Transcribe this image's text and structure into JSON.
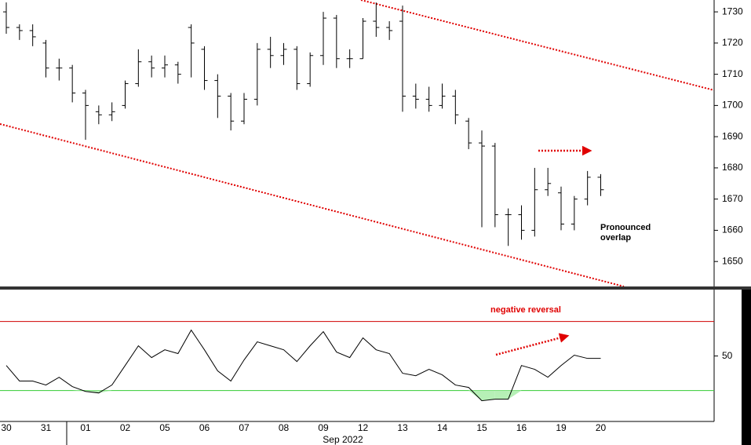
{
  "chart_data": [
    {
      "type": "ohlc",
      "categories": [
        "30",
        null,
        null,
        "31",
        null,
        null,
        "01",
        null,
        null,
        "02",
        null,
        null,
        "05",
        null,
        null,
        "06",
        null,
        null,
        "07",
        null,
        null,
        "08",
        null,
        null,
        "09",
        null,
        null,
        "12",
        null,
        null,
        "13",
        null,
        null,
        "14",
        null,
        null,
        "15",
        null,
        null,
        "16",
        null,
        null,
        "19",
        null,
        null,
        "20"
      ],
      "open": [
        1730,
        1725,
        1724,
        1720,
        1712,
        1712,
        1704,
        1698,
        1697,
        1700,
        1707,
        1714,
        1712,
        1713,
        1725,
        1718,
        1708,
        1703,
        1695,
        1702,
        1718,
        1716,
        1718,
        1707,
        1716,
        1728,
        1715,
        1715,
        1727,
        1725,
        1727,
        1703,
        1702,
        1700,
        1703,
        1695,
        1688,
        1687,
        1665,
        1665,
        1660,
        1673,
        1672,
        1662,
        1670,
        1677
      ],
      "high": [
        1733,
        1726,
        1726,
        1721,
        1715,
        1713,
        1705,
        1700,
        1701,
        1708,
        1718,
        1716,
        1716,
        1714,
        1726,
        1719,
        1710,
        1704,
        1704,
        1720,
        1722,
        1720,
        1719,
        1717,
        1730,
        1729,
        1718,
        1728,
        1733,
        1727,
        1732,
        1707,
        1706,
        1707,
        1705,
        1696,
        1692,
        1688,
        1667,
        1668,
        1680,
        1680,
        1674,
        1671,
        1679,
        1678
      ],
      "low": [
        1723,
        1721,
        1719,
        1709,
        1708,
        1701,
        1689,
        1694,
        1695,
        1699,
        1706,
        1709,
        1709,
        1707,
        1709,
        1705,
        1696,
        1692,
        1694,
        1700,
        1712,
        1713,
        1705,
        1706,
        1713,
        1712,
        1712,
        1715,
        1722,
        1721,
        1698,
        1699,
        1698,
        1699,
        1694,
        1686,
        1661,
        1661,
        1655,
        1657,
        1658,
        1671,
        1660,
        1660,
        1668,
        1671
      ],
      "close": [
        1725,
        1724,
        1722,
        1712,
        1712,
        1704,
        1700,
        1697,
        1698,
        1707,
        1714,
        1712,
        1713,
        1710,
        1720,
        1708,
        1703,
        1695,
        1702,
        1718,
        1716,
        1718,
        1707,
        1716,
        1728,
        1715,
        1715,
        1727,
        1725,
        1724,
        1703,
        1702,
        1700,
        1703,
        1697,
        1688,
        1687,
        1665,
        1665,
        1660,
        1673,
        1675,
        1662,
        1670,
        1677,
        1673
      ],
      "color": "#000000",
      "ylim": [
        1642,
        1733.8
      ],
      "yticks": [
        1650,
        1660,
        1670,
        1680,
        1690,
        1700,
        1710,
        1720,
        1730
      ],
      "xlabel": "Sep 2022",
      "annotations": [
        "Pronounced",
        "overlap"
      ]
    },
    {
      "type": "line",
      "values": [
        44.5,
        35.5,
        35.5,
        33.2,
        37.7,
        32.3,
        29.5,
        28.6,
        33.2,
        44.5,
        55.9,
        49.1,
        53.6,
        51.4,
        65,
        53.6,
        41.4,
        35.5,
        47.7,
        58.2,
        55.9,
        53.6,
        46.8,
        55.9,
        64.1,
        52.3,
        49.1,
        60.5,
        53.6,
        51.4,
        40,
        38.6,
        42.3,
        39.1,
        33.2,
        31.8,
        24.1,
        25,
        25,
        44.5,
        42.3,
        37.7,
        44.5,
        50.5,
        48.6,
        48.6
      ],
      "color": "#000000",
      "levels": [
        {
          "value": 70,
          "color": "#d00000"
        },
        {
          "value": 30,
          "color": "#33cc33"
        }
      ],
      "ylim": [
        13,
        88
      ],
      "yticks": [
        50
      ],
      "annotations": [
        "negative reversal"
      ]
    }
  ]
}
